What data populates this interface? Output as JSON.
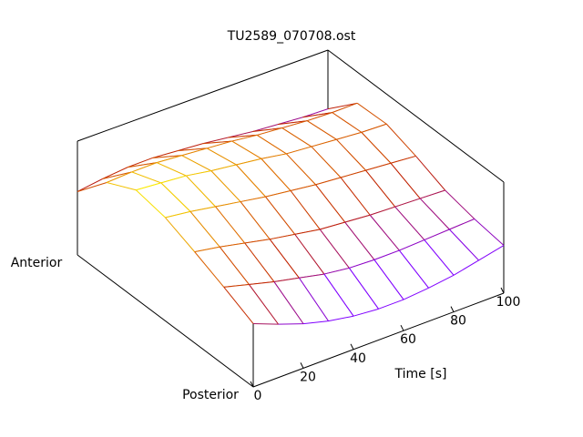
{
  "chart_data": {
    "type": "surface",
    "title": "TU2589_070708.ost",
    "xlabel": "Time [s]",
    "x": [
      0,
      10,
      20,
      30,
      40,
      50,
      60,
      70,
      80,
      90,
      100
    ],
    "xlim": [
      0,
      100
    ],
    "xticks": [
      0,
      20,
      40,
      60,
      80,
      100
    ],
    "y": [
      "Anterior",
      null,
      null,
      null,
      null,
      null,
      "Posterior"
    ],
    "zlim": [
      0,
      1
    ],
    "palette": [
      "#8000ff",
      "#c02000",
      "#e07000",
      "#ffff00"
    ],
    "z": [
      [
        0.57,
        0.6,
        0.62,
        0.62,
        0.6,
        0.58,
        0.55,
        0.52,
        0.5,
        0.48,
        0.47
      ],
      [
        0.85,
        0.86,
        0.86,
        0.84,
        0.82,
        0.8,
        0.77,
        0.75,
        0.73,
        0.72,
        0.72
      ],
      [
        0.98,
        0.96,
        0.94,
        0.9,
        0.87,
        0.84,
        0.8,
        0.78,
        0.76,
        0.74,
        0.73
      ],
      [
        0.93,
        0.9,
        0.86,
        0.82,
        0.78,
        0.75,
        0.72,
        0.7,
        0.68,
        0.66,
        0.64
      ],
      [
        0.82,
        0.78,
        0.73,
        0.68,
        0.64,
        0.6,
        0.58,
        0.56,
        0.55,
        0.54,
        0.53
      ],
      [
        0.7,
        0.64,
        0.58,
        0.53,
        0.48,
        0.45,
        0.44,
        0.44,
        0.45,
        0.46,
        0.47
      ],
      [
        0.57,
        0.48,
        0.4,
        0.34,
        0.3,
        0.28,
        0.28,
        0.3,
        0.33,
        0.38,
        0.43
      ]
    ]
  }
}
